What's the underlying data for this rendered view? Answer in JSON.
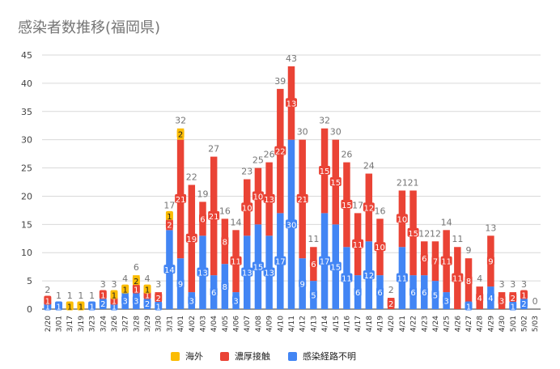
{
  "title": "感染者数推移(福岡県)",
  "chart_data": {
    "type": "bar",
    "stacked": true,
    "title": "感染者数推移(福岡県)",
    "xlabel": "",
    "ylabel": "",
    "ylim": [
      0,
      45
    ],
    "yticks": [
      0,
      5,
      10,
      15,
      20,
      25,
      30,
      35,
      40,
      45
    ],
    "grid": true,
    "legend_position": "bottom",
    "categories": [
      "2/20",
      "3/01",
      "3/17",
      "3/19",
      "3/23",
      "3/24",
      "3/26",
      "3/27",
      "3/28",
      "3/29",
      "3/30",
      "3/31",
      "4/01",
      "4/02",
      "4/03",
      "4/04",
      "4/05",
      "4/06",
      "4/07",
      "4/08",
      "4/09",
      "4/10",
      "4/11",
      "4/12",
      "4/13",
      "4/14",
      "4/15",
      "4/16",
      "4/17",
      "4/18",
      "4/19",
      "4/20",
      "4/21",
      "4/22",
      "4/23",
      "4/24",
      "4/25",
      "4/26",
      "4/27",
      "4/28",
      "4/29",
      "4/30",
      "5/01",
      "5/02",
      "5/03"
    ],
    "series": [
      {
        "name": "感染経路不明",
        "color": "#4285f4",
        "values": [
          1,
          1,
          0,
          0,
          1,
          2,
          1,
          3,
          3,
          2,
          1,
          14,
          9,
          3,
          13,
          6,
          8,
          3,
          13,
          15,
          13,
          17,
          30,
          9,
          5,
          17,
          15,
          11,
          6,
          12,
          6,
          0,
          11,
          6,
          6,
          5,
          3,
          0,
          1,
          0,
          4,
          0,
          1,
          2,
          0
        ]
      },
      {
        "name": "濃厚接触",
        "color": "#ea4335",
        "values": [
          1,
          0,
          0,
          0,
          0,
          1,
          1,
          0,
          1,
          1,
          2,
          2,
          21,
          19,
          6,
          21,
          8,
          11,
          10,
          10,
          13,
          22,
          13,
          21,
          6,
          15,
          15,
          15,
          11,
          12,
          10,
          2,
          10,
          15,
          6,
          7,
          11,
          11,
          8,
          4,
          9,
          3,
          2,
          1,
          0
        ]
      },
      {
        "name": "海外",
        "color": "#fbbc04",
        "values": [
          0,
          0,
          1,
          1,
          0,
          0,
          1,
          1,
          2,
          1,
          0,
          1,
          2,
          0,
          0,
          0,
          0,
          0,
          0,
          0,
          0,
          0,
          0,
          0,
          0,
          0,
          0,
          0,
          0,
          0,
          0,
          0,
          0,
          0,
          0,
          0,
          0,
          0,
          0,
          0,
          0,
          0,
          0,
          0,
          0
        ]
      }
    ],
    "totals": [
      2,
      1,
      1,
      1,
      1,
      3,
      3,
      4,
      6,
      4,
      3,
      17,
      32,
      22,
      19,
      27,
      16,
      14,
      23,
      25,
      26,
      39,
      43,
      30,
      11,
      32,
      30,
      26,
      17,
      24,
      16,
      2,
      21,
      21,
      12,
      12,
      14,
      11,
      9,
      4,
      13,
      3,
      3,
      3,
      0
    ]
  },
  "legend": [
    {
      "name": "海外",
      "color": "#fbbc04"
    },
    {
      "name": "濃厚接触",
      "color": "#ea4335"
    },
    {
      "name": "感染経路不明",
      "color": "#4285f4"
    }
  ]
}
